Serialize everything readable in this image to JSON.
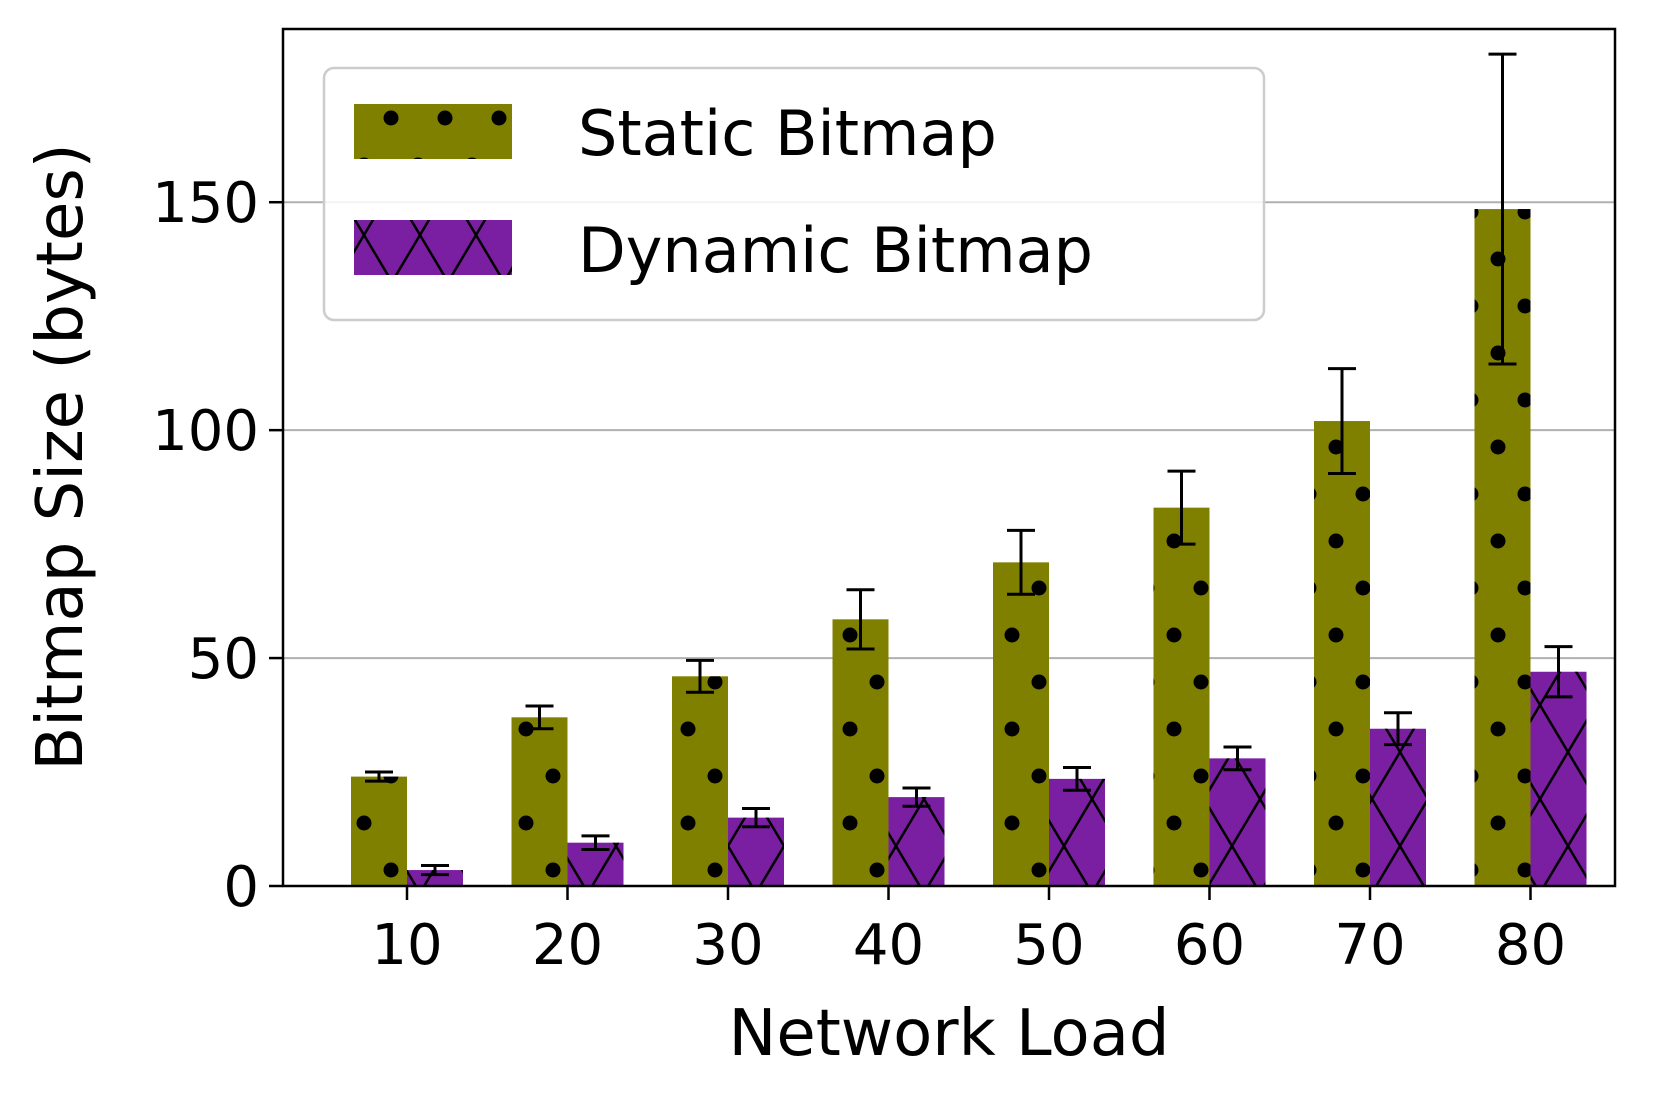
{
  "chart_data": {
    "type": "bar",
    "xlabel": "Network Load",
    "ylabel": "Bitmap Size (bytes)",
    "categories": [
      "10",
      "20",
      "30",
      "40",
      "50",
      "60",
      "70",
      "80"
    ],
    "ylim": [
      0,
      188
    ],
    "yticks": [
      0,
      50,
      100,
      150
    ],
    "grid": "horizontal",
    "legend_position": "top-left",
    "series": [
      {
        "name": "Static Bitmap",
        "color": "#808000",
        "pattern": "dots",
        "values": [
          24,
          37,
          46,
          58.5,
          71,
          83,
          102,
          148.5
        ],
        "error": [
          1,
          2.5,
          3.5,
          6.5,
          7,
          8,
          11.5,
          34
        ]
      },
      {
        "name": "Dynamic Bitmap",
        "color": "#7b1fa2",
        "pattern": "crosshatch",
        "values": [
          3.5,
          9.5,
          15,
          19.5,
          23.5,
          28,
          34.5,
          47
        ],
        "error": [
          1,
          1.5,
          2,
          2,
          2.5,
          2.5,
          3.5,
          5.5
        ]
      }
    ]
  }
}
